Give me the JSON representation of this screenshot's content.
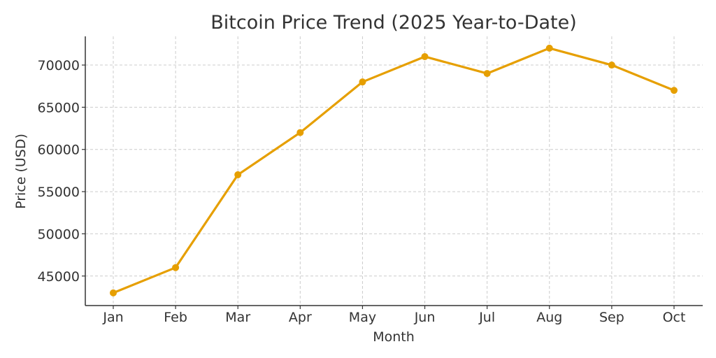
{
  "chart_data": {
    "type": "line",
    "title": "Bitcoin Price Trend (2025 Year-to-Date)",
    "xlabel": "Month",
    "ylabel": "Price (USD)",
    "categories": [
      "Jan",
      "Feb",
      "Mar",
      "Apr",
      "May",
      "Jun",
      "Jul",
      "Aug",
      "Sep",
      "Oct"
    ],
    "series": [
      {
        "name": "Bitcoin Price",
        "values": [
          43000,
          46000,
          57000,
          62000,
          68000,
          71000,
          69000,
          72000,
          70000,
          67000
        ],
        "color": "#E69F00"
      }
    ],
    "yticks": [
      45000,
      50000,
      55000,
      60000,
      65000,
      70000
    ],
    "ylim": [
      41500,
      73400
    ],
    "grid": true,
    "legend": "none"
  }
}
